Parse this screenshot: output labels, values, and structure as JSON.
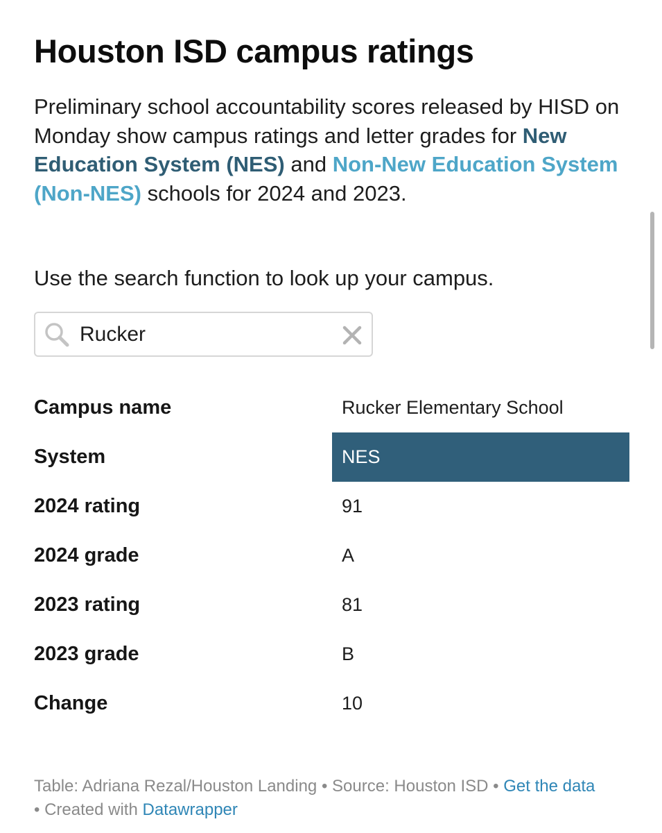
{
  "title": "Houston ISD campus ratings",
  "intro": {
    "part1": "Preliminary school accountability scores released by HISD on Monday show campus ratings and letter grades for ",
    "nes_link": "New Education System (NES)",
    "part2": " and ",
    "nonnes_link": "Non-New Education System (Non-NES)",
    "part3": " schools for 2024 and 2023."
  },
  "note": "Use the search function to look up your campus.",
  "search": {
    "value": "Rucker",
    "icon": "search-icon",
    "clear_icon": "close-icon"
  },
  "results": [
    {
      "label": "Campus name",
      "value": "Rucker Elementary School"
    },
    {
      "label": "System",
      "value": "NES",
      "fill": "#305f7a"
    },
    {
      "label": "2024 rating",
      "value": "91"
    },
    {
      "label": "2024 grade",
      "value": "A"
    },
    {
      "label": "2023 rating",
      "value": "81"
    },
    {
      "label": "2023 grade",
      "value": "B"
    },
    {
      "label": "Change",
      "value": "10"
    }
  ],
  "footer": {
    "table_credit": "Table: Adriana Rezal/Houston Landing",
    "separator": " • ",
    "source": "Source: Houston ISD",
    "get_data_link": "Get the data",
    "created_with": "Created with ",
    "datawrapper_link": "Datawrapper"
  },
  "colors": {
    "nes": "#2f5d74",
    "non_nes": "#4ea6c8",
    "link": "#2f86b6",
    "highlight": "#305f7a"
  }
}
